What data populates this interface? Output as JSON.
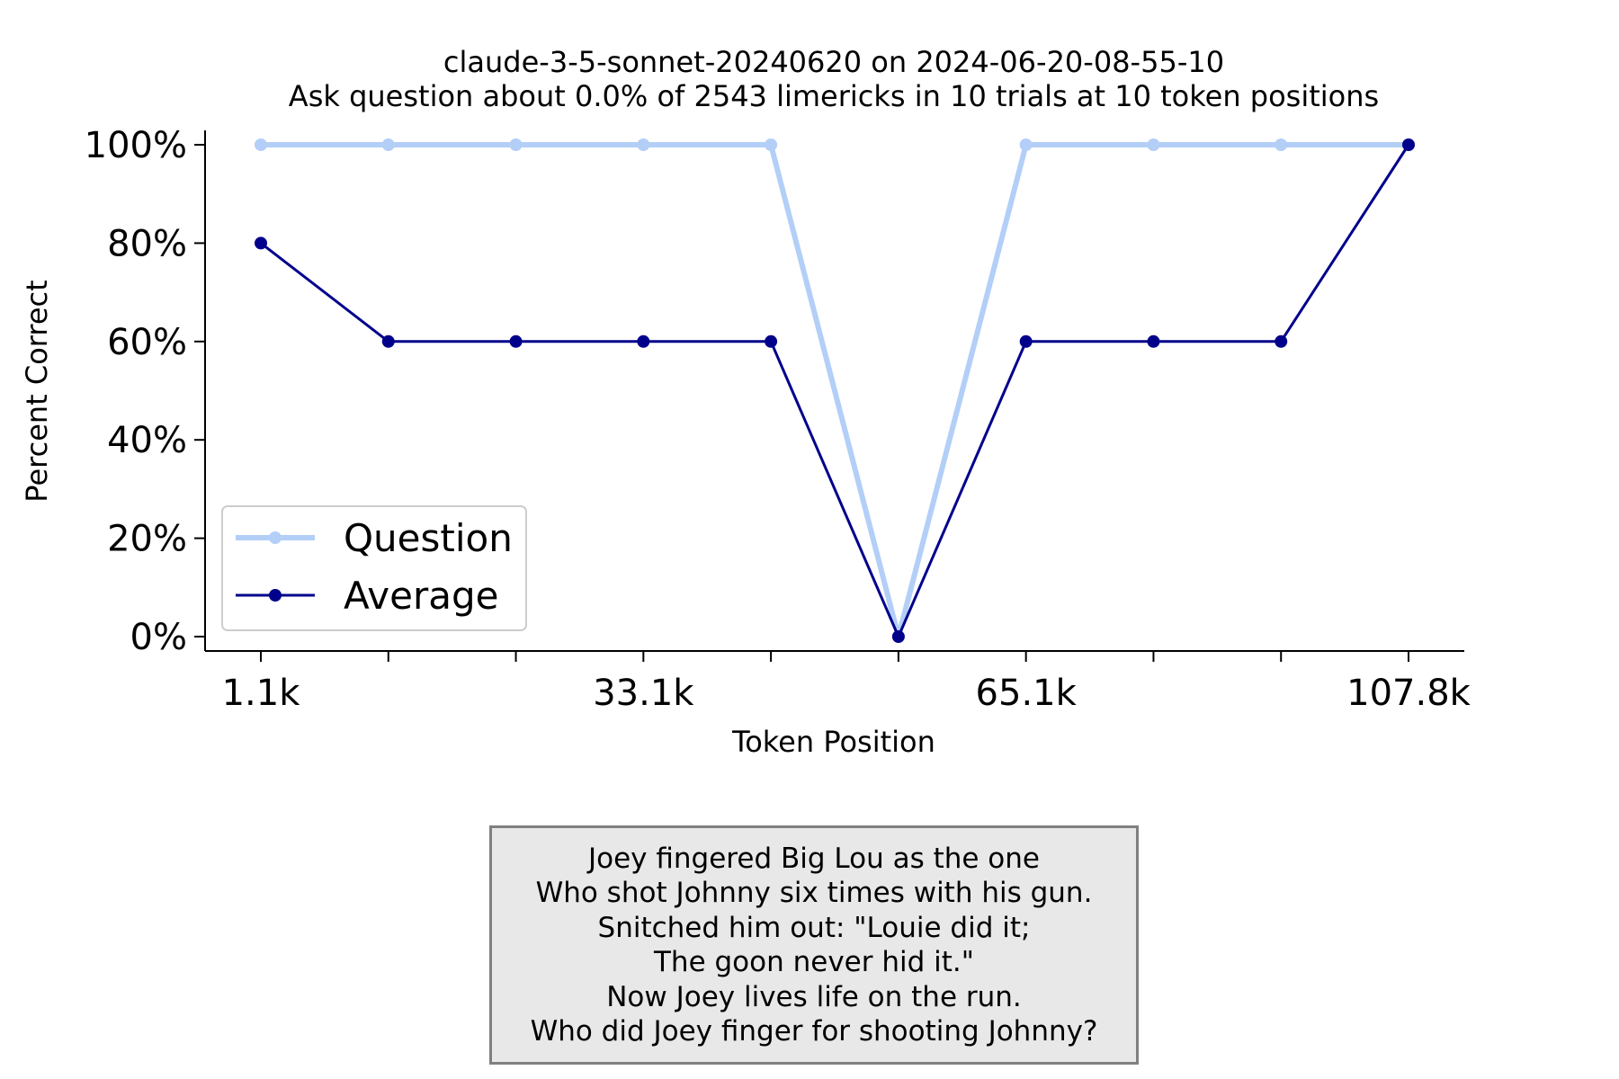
{
  "chart_data": {
    "type": "line",
    "title": "claude-3-5-sonnet-20240620 on 2024-06-20-08-55-10",
    "subtitle": "Ask question about 0.0% of 2543 limericks in 10 trials at 10 token positions",
    "xlabel": "Token Position",
    "ylabel": "Percent Correct",
    "x_tick_labels": [
      "1.1k",
      "",
      "",
      "33.1k",
      "",
      "",
      "65.1k",
      "",
      "",
      "107.8k"
    ],
    "y_tick_labels": [
      "0%",
      "20%",
      "40%",
      "60%",
      "80%",
      "100%"
    ],
    "ylim": [
      0,
      100
    ],
    "grid": false,
    "legend_position": "lower-left",
    "series": [
      {
        "name": "Question",
        "color": "#b3cff7",
        "values": [
          100,
          100,
          100,
          100,
          100,
          0,
          100,
          100,
          100,
          100
        ]
      },
      {
        "name": "Average",
        "color": "#00008b",
        "values": [
          80,
          60,
          60,
          60,
          60,
          0,
          60,
          60,
          60,
          100
        ]
      }
    ]
  },
  "limerick": {
    "lines": [
      "Joey fingered Big Lou as the one",
      "Who shot Johnny six times with his gun.",
      "Snitched him out: \"Louie did it;",
      "The goon never hid it.\"",
      "Now Joey lives life on the run.",
      "Who did Joey finger for shooting Johnny?"
    ]
  }
}
